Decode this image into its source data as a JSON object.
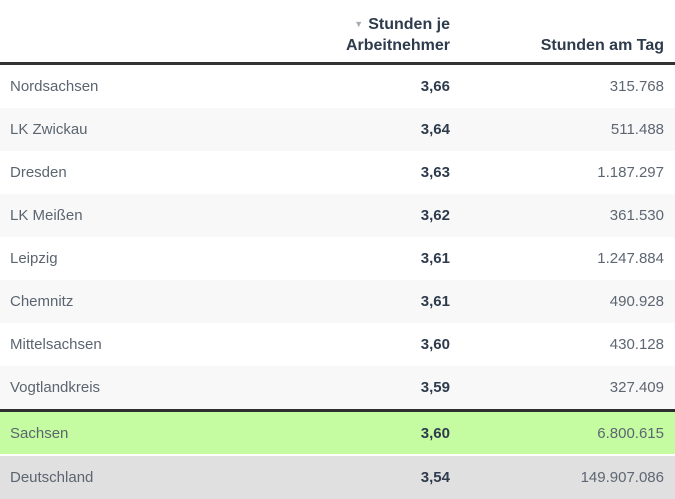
{
  "chart_data": {
    "type": "table",
    "header": {
      "sort_icon": "▼",
      "col1_label": "",
      "col2_line1": "Stunden je",
      "col2_line2": "Arbeitnehmer",
      "col2_label": "Stunden je Arbeitnehmer",
      "col3_label": "Stunden am Tag",
      "sorted_by": "Stunden je Arbeitnehmer",
      "sort_direction": "descending"
    },
    "rows": [
      {
        "name": "Nordsachsen",
        "stunden_je_arbeitnehmer": "3,66",
        "stunden_am_tag": "315.768",
        "highlight": null
      },
      {
        "name": "LK Zwickau",
        "stunden_je_arbeitnehmer": "3,64",
        "stunden_am_tag": "511.488",
        "highlight": null
      },
      {
        "name": "Dresden",
        "stunden_je_arbeitnehmer": "3,63",
        "stunden_am_tag": "1.187.297",
        "highlight": null
      },
      {
        "name": "LK Meißen",
        "stunden_je_arbeitnehmer": "3,62",
        "stunden_am_tag": "361.530",
        "highlight": null
      },
      {
        "name": "Leipzig",
        "stunden_je_arbeitnehmer": "3,61",
        "stunden_am_tag": "1.247.884",
        "highlight": null
      },
      {
        "name": "Chemnitz",
        "stunden_je_arbeitnehmer": "3,61",
        "stunden_am_tag": "490.928",
        "highlight": null
      },
      {
        "name": "Mittelsachsen",
        "stunden_je_arbeitnehmer": "3,60",
        "stunden_am_tag": "430.128",
        "highlight": null
      },
      {
        "name": "Vogtlandkreis",
        "stunden_je_arbeitnehmer": "3,59",
        "stunden_am_tag": "327.409",
        "highlight": null
      },
      {
        "name": "Sachsen",
        "stunden_je_arbeitnehmer": "3,60",
        "stunden_am_tag": "6.800.615",
        "highlight": "green"
      },
      {
        "name": "Deutschland",
        "stunden_je_arbeitnehmer": "3,54",
        "stunden_am_tag": "149.907.086",
        "highlight": "gray"
      }
    ],
    "colors": {
      "highlight_green": "#c5fba1",
      "highlight_gray": "#e0e0e0",
      "zebra_stripe": "#f8f8f8",
      "dark_border": "#333333",
      "header_text": "#2e3b4c",
      "name_text": "#5b6570",
      "total_text": "#5d6672",
      "sort_icon_color": "#a6adb5"
    }
  }
}
